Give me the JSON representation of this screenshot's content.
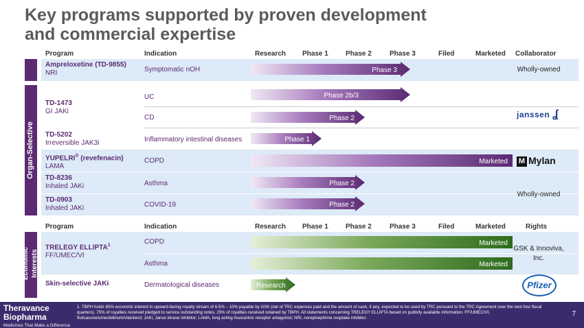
{
  "title_line1": "Key programs supported by proven development",
  "title_line2": "and commercial expertise",
  "header_top": {
    "program": "Program",
    "indication": "Indication",
    "research": "Research",
    "phase1": "Phase 1",
    "phase2": "Phase 2",
    "phase3": "Phase 3",
    "filed": "Filed",
    "marketed": "Marketed",
    "collaborator": "Collaborator"
  },
  "header_bottom": {
    "program": "Program",
    "indication": "Indication",
    "research": "Research",
    "phase1": "Phase 1",
    "phase2": "Phase 2",
    "phase3": "Phase 3",
    "filed": "Filed",
    "marketed": "Marketed",
    "rights": "Rights"
  },
  "sidelabels": {
    "organ": "Organ-Selective",
    "econ_line1": "Economic",
    "econ_line2": "Interests"
  },
  "programs": {
    "ampreloxetine": {
      "name": "Ampreloxetine (TD-9855)",
      "sub": "NRI"
    },
    "td1473": {
      "name": "TD-1473",
      "sub": "GI JAKi"
    },
    "td5202": {
      "name": "TD-5202",
      "sub": "Irreversible JAK3i"
    },
    "yupelri": {
      "name": "YUPELRI",
      "sup": "®",
      "name2": " (revefenacin)",
      "sub": "LAMA"
    },
    "td8236": {
      "name": "TD-8236",
      "sub": "Inhaled JAKi"
    },
    "td0903": {
      "name": "TD-0903",
      "sub": "Inhaled JAKi"
    },
    "trelegy": {
      "name": "TRELEGY ELLIPTA",
      "sup": "1",
      "sub": "FF/UMEC/VI"
    },
    "skin": {
      "name": "Skin-selective JAKi"
    }
  },
  "indications": {
    "nOH": "Symptomatic nOH",
    "uc": "UC",
    "cd": "CD",
    "iid": "Inflammatory intestinal diseases",
    "copd": "COPD",
    "asthma": "Asthma",
    "covid": "COVID-19",
    "copd2": "COPD",
    "asthma2": "Asthma",
    "derm": "Dermatological diseases"
  },
  "bars": {
    "ampreloxetine": "Phase 3",
    "uc": "Phase 2b/3",
    "cd": "Phase 2",
    "iid": "Phase 1",
    "copd": "Marketed",
    "asthma": "Phase 2",
    "covid": "Phase 2",
    "trelegy_copd": "Marketed",
    "trelegy_asthma": "Marketed",
    "derm": "Research"
  },
  "collaborators": {
    "wholly1": "Wholly-owned",
    "wholly2": "Wholly-owned",
    "janssen": "janssen",
    "mylan": "Mylan",
    "mylan_box": "M",
    "rights": "GSK & Innoviva, Inc.",
    "pfizer": "Pfizer"
  },
  "footer": {
    "logo1": "Theravance",
    "logo2": "Biopharma",
    "tagline": "Medicines That Make a Difference",
    "footnote": "1. TBPH holds 85% economic interest in upward-tiering royalty stream of 6.5% – 10% payable by GSK (net of TRC expenses paid and the amount of cash, if any, expected to be used by TRC pursuant to the TRC Agreement over the next four fiscal quarters). 75% of royalties received pledged to service outstanding notes, 25% of royalties received retained by TBPH. All statements concerning TRELEGY ELLIPTA based on publicly available information. FF/UMEC/VI, fluticasone/umeclidinium/vilanterol; JAKi, Janus kinase inhibitor; LAMA, long acting muscarinic receptor antagonist; NRI, norepinephrine reuptake inhibitor.",
    "page": "7"
  },
  "colors": {
    "purple": "#5b2a72",
    "green": "#3d7a2a",
    "band": "#ddeaf7",
    "footer": "#3a2c6c"
  }
}
